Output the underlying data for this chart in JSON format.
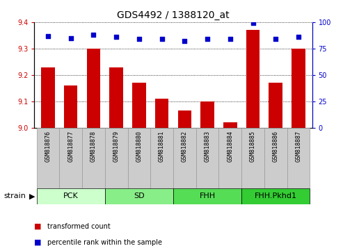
{
  "title": "GDS4492 / 1388120_at",
  "samples": [
    "GSM818876",
    "GSM818877",
    "GSM818878",
    "GSM818879",
    "GSM818880",
    "GSM818881",
    "GSM818882",
    "GSM818883",
    "GSM818884",
    "GSM818885",
    "GSM818886",
    "GSM818887"
  ],
  "bar_values": [
    9.23,
    9.16,
    9.3,
    9.23,
    9.17,
    9.11,
    9.065,
    9.1,
    9.02,
    9.37,
    9.17,
    9.3
  ],
  "percentile_values": [
    87,
    85,
    88,
    86,
    84,
    84,
    82,
    84,
    84,
    99,
    84,
    86
  ],
  "y_min": 9.0,
  "y_max": 9.4,
  "y_ticks": [
    9.0,
    9.1,
    9.2,
    9.3,
    9.4
  ],
  "y2_ticks": [
    0,
    25,
    50,
    75,
    100
  ],
  "bar_color": "#cc0000",
  "dot_color": "#0000cc",
  "bar_width": 0.6,
  "groups": [
    {
      "label": "PCK",
      "start": 0,
      "end": 3,
      "color": "#ccffcc"
    },
    {
      "label": "SD",
      "start": 3,
      "end": 6,
      "color": "#88ee88"
    },
    {
      "label": "FHH",
      "start": 6,
      "end": 9,
      "color": "#55dd55"
    },
    {
      "label": "FHH.Pkhd1",
      "start": 9,
      "end": 12,
      "color": "#33cc33"
    }
  ],
  "strain_label": "strain",
  "legend_bar": "transformed count",
  "legend_dot": "percentile rank within the sample",
  "title_fontsize": 10,
  "tick_fontsize": 7,
  "sample_fontsize": 6,
  "group_fontsize": 8,
  "legend_fontsize": 7,
  "tick_label_color_left": "#cc0000",
  "tick_label_color_right": "#0000cc",
  "sample_bg_color": "#cccccc",
  "sample_border_color": "#999999",
  "plot_bg": "#ffffff",
  "fig_bg": "#ffffff",
  "grid_color": "#000000",
  "grid_style": "dotted",
  "grid_lw": 0.6
}
